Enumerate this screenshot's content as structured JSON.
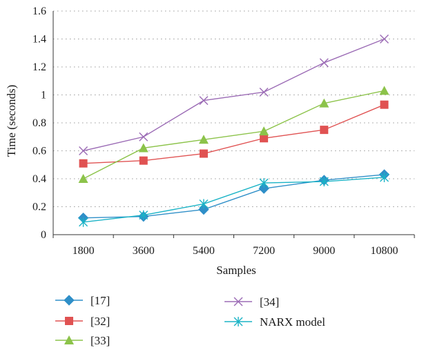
{
  "chart_data": {
    "type": "line",
    "xlabel": "Samples",
    "ylabel": "Time (seconds)",
    "categories": [
      "1800",
      "3600",
      "5400",
      "7200",
      "9000",
      "10800"
    ],
    "ylim": [
      0,
      1.6
    ],
    "yticks": [
      "0",
      "0.2",
      "0.4",
      "0.6",
      "0.8",
      "1",
      "1.2",
      "1.4",
      "1.6"
    ],
    "grid": "horizontal dotted",
    "legend_placement": "bottom, two columns",
    "series": [
      {
        "name": "[17]",
        "values": [
          0.12,
          0.13,
          0.18,
          0.33,
          0.39,
          0.43
        ],
        "color": "#2f8fc8",
        "marker": "diamond"
      },
      {
        "name": "[32]",
        "values": [
          0.51,
          0.53,
          0.58,
          0.69,
          0.75,
          0.93
        ],
        "color": "#e05252",
        "marker": "square"
      },
      {
        "name": "[33]",
        "values": [
          0.4,
          0.62,
          0.68,
          0.74,
          0.94,
          1.03
        ],
        "color": "#8cc34a",
        "marker": "triangle"
      },
      {
        "name": "[34]",
        "values": [
          0.6,
          0.7,
          0.96,
          1.02,
          1.23,
          1.4
        ],
        "color": "#9b6bb5",
        "marker": "x"
      },
      {
        "name": "NARX model",
        "values": [
          0.09,
          0.14,
          0.22,
          0.37,
          0.38,
          0.41
        ],
        "color": "#1ab3c6",
        "marker": "star"
      }
    ]
  }
}
